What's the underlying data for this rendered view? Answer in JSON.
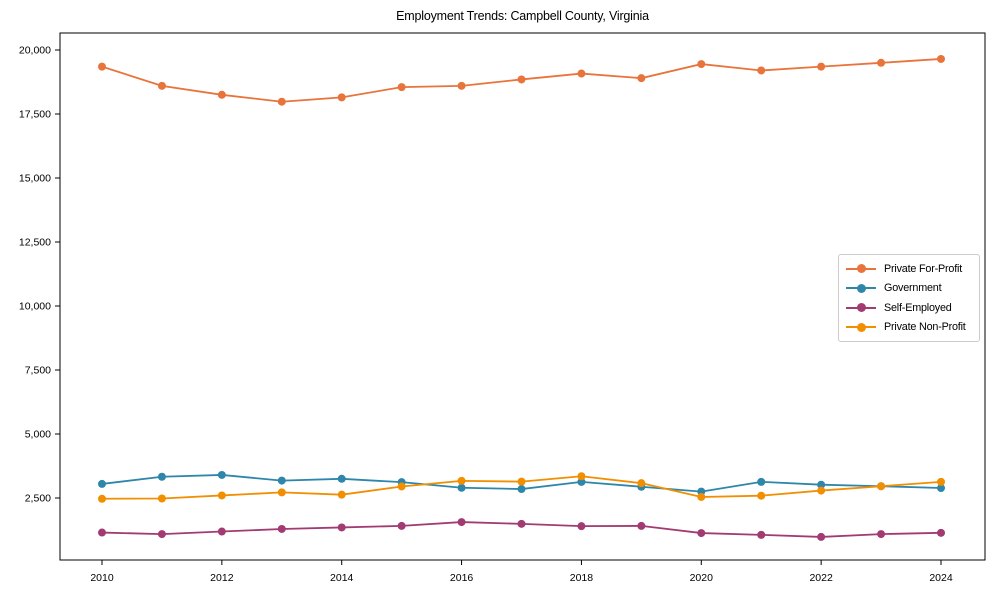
{
  "chart_data": {
    "type": "line",
    "title": "Employment Trends: Campbell County, Virginia",
    "xlabel": "",
    "ylabel": "",
    "grid": false,
    "legend_position": "center right",
    "x": [
      2010,
      2011,
      2012,
      2013,
      2014,
      2015,
      2016,
      2017,
      2018,
      2019,
      2020,
      2021,
      2022,
      2023,
      2024
    ],
    "x_tick_labels": [
      "2010",
      "2012",
      "2014",
      "2016",
      "2018",
      "2020",
      "2022",
      "2024"
    ],
    "x_ticks": [
      2010,
      2012,
      2014,
      2016,
      2018,
      2020,
      2022,
      2024
    ],
    "y_ticks": [
      2500,
      5000,
      7500,
      10000,
      12500,
      15000,
      17500,
      20000
    ],
    "y_tick_labels": [
      "2,500",
      "5,000",
      "7,500",
      "10,000",
      "12,500",
      "15,000",
      "17,500",
      "20,000"
    ],
    "xlim": [
      2009.3,
      2024.7
    ],
    "ylim": [
      80,
      20680
    ],
    "series": [
      {
        "name": "Private For-Profit",
        "color": "#E8743B",
        "values": [
          19350,
          18600,
          18250,
          17980,
          18150,
          18550,
          18600,
          18850,
          19080,
          18900,
          19450,
          19200,
          19350,
          19500,
          19650
        ]
      },
      {
        "name": "Government",
        "color": "#2E86AB",
        "values": [
          3050,
          3330,
          3400,
          3180,
          3250,
          3120,
          2900,
          2850,
          3130,
          2940,
          2750,
          3130,
          3020,
          2960,
          2890
        ]
      },
      {
        "name": "Self-Employed",
        "color": "#A23B72",
        "values": [
          1150,
          1090,
          1190,
          1290,
          1350,
          1410,
          1560,
          1490,
          1400,
          1410,
          1130,
          1060,
          980,
          1090,
          1140
        ]
      },
      {
        "name": "Private Non-Profit",
        "color": "#F18F01",
        "values": [
          2470,
          2480,
          2600,
          2720,
          2630,
          2950,
          3170,
          3140,
          3350,
          3080,
          2540,
          2590,
          2790,
          2960,
          3130
        ]
      }
    ],
    "axis_color": "#000000",
    "legend_border_color": "#cccccc",
    "background_color": "#ffffff"
  }
}
